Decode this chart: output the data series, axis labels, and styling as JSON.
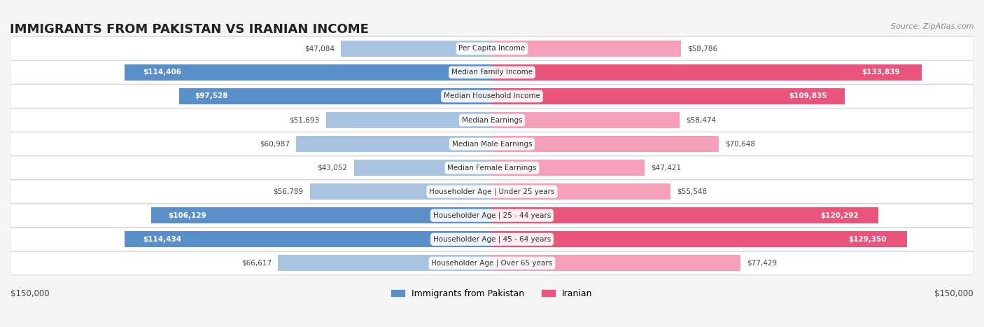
{
  "title": "IMMIGRANTS FROM PAKISTAN VS IRANIAN INCOME",
  "source": "Source: ZipAtlas.com",
  "categories": [
    "Per Capita Income",
    "Median Family Income",
    "Median Household Income",
    "Median Earnings",
    "Median Male Earnings",
    "Median Female Earnings",
    "Householder Age | Under 25 years",
    "Householder Age | 25 - 44 years",
    "Householder Age | 45 - 64 years",
    "Householder Age | Over 65 years"
  ],
  "pakistan_values": [
    47084,
    114406,
    97528,
    51693,
    60987,
    43052,
    56789,
    106129,
    114434,
    66617
  ],
  "iranian_values": [
    58786,
    133839,
    109835,
    58474,
    70648,
    47421,
    55548,
    120292,
    129350,
    77429
  ],
  "pakistan_labels": [
    "$47,084",
    "$114,406",
    "$97,528",
    "$51,693",
    "$60,987",
    "$43,052",
    "$56,789",
    "$106,129",
    "$114,434",
    "$66,617"
  ],
  "iranian_labels": [
    "$58,786",
    "$133,839",
    "$109,835",
    "$58,474",
    "$70,648",
    "$47,421",
    "$55,548",
    "$120,292",
    "$129,350",
    "$77,429"
  ],
  "pakistan_color_bar": "#a8c4e0",
  "iranian_color_bar": "#f4a0b8",
  "pakistan_color_solid": "#5b8fc9",
  "iranian_color_solid": "#e8547a",
  "pakistan_label_dark": "#5b8fc9",
  "iranian_label_dark": "#e8547a",
  "max_val": 150000,
  "background_color": "#f5f5f5",
  "row_bg_color": "#ffffff",
  "legend_pakistan": "Immigrants from Pakistan",
  "legend_iranian": "Iranian",
  "xlabel_left": "$150,000",
  "xlabel_right": "$150,000"
}
